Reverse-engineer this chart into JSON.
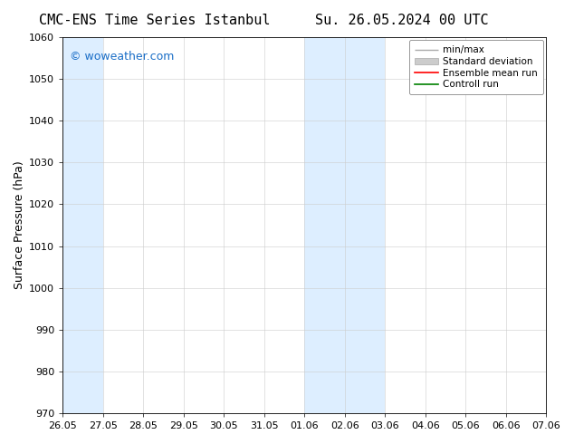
{
  "title_left": "CMC-ENS Time Series Istanbul",
  "title_right": "Su. 26.05.2024 00 UTC",
  "ylabel": "Surface Pressure (hPa)",
  "ylim": [
    970,
    1060
  ],
  "yticks": [
    970,
    980,
    990,
    1000,
    1010,
    1020,
    1030,
    1040,
    1050,
    1060
  ],
  "xtick_labels": [
    "26.05",
    "27.05",
    "28.05",
    "29.05",
    "30.05",
    "31.05",
    "01.06",
    "02.06",
    "03.06",
    "04.06",
    "05.06",
    "06.06",
    "07.06"
  ],
  "xtick_positions": [
    0,
    1,
    2,
    3,
    4,
    5,
    6,
    7,
    8,
    9,
    10,
    11,
    12
  ],
  "shaded_bands": [
    {
      "x_start": 0,
      "x_end": 1
    },
    {
      "x_start": 6,
      "x_end": 7
    },
    {
      "x_start": 7,
      "x_end": 8
    }
  ],
  "shade_color": "#ddeeff",
  "watermark": "© woweather.com",
  "watermark_color": "#1a6ec7",
  "legend_entries": [
    {
      "label": "min/max",
      "color": "#aaaaaa",
      "lw": 1.0
    },
    {
      "label": "Standard deviation",
      "color": "#cccccc",
      "lw": 8
    },
    {
      "label": "Ensemble mean run",
      "color": "red",
      "lw": 1.2
    },
    {
      "label": "Controll run",
      "color": "green",
      "lw": 1.2
    }
  ],
  "bg_color": "#ffffff",
  "plot_bg_color": "#ffffff",
  "title_fontsize": 11,
  "axis_label_fontsize": 9,
  "tick_fontsize": 8,
  "legend_fontsize": 7.5,
  "watermark_fontsize": 9
}
